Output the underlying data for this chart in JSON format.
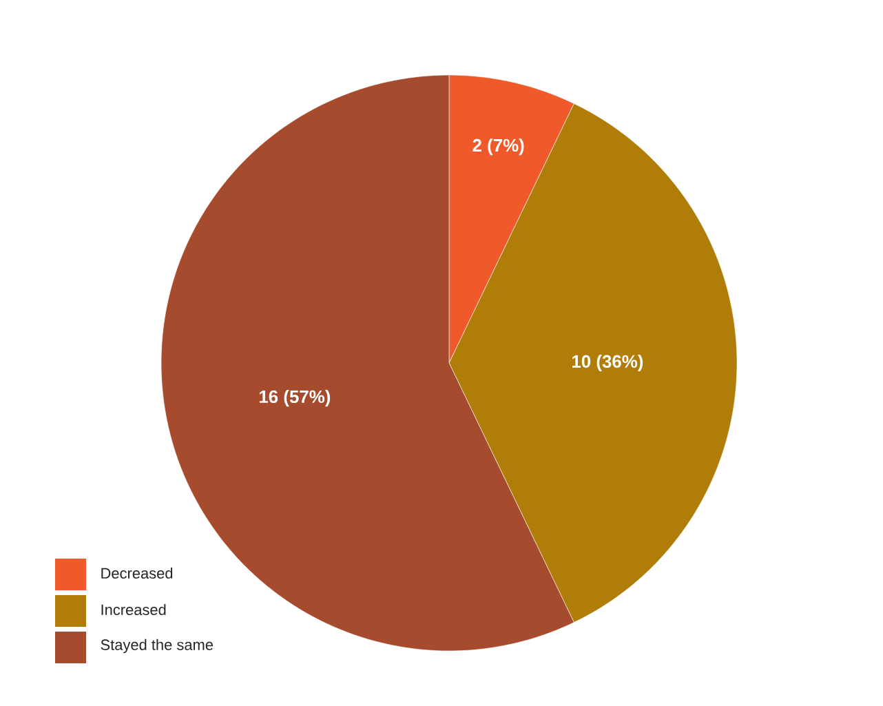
{
  "chart_data": {
    "type": "pie",
    "categories": [
      "Decreased",
      "Increased",
      "Stayed the same"
    ],
    "values": [
      2,
      10,
      16
    ],
    "colors": [
      "#f05a2a",
      "#b07d08",
      "#a64b2d"
    ],
    "value_labels": [
      "2 (7%)",
      "10 (36%)",
      "16 (57%)"
    ],
    "legend": "bottom left"
  }
}
